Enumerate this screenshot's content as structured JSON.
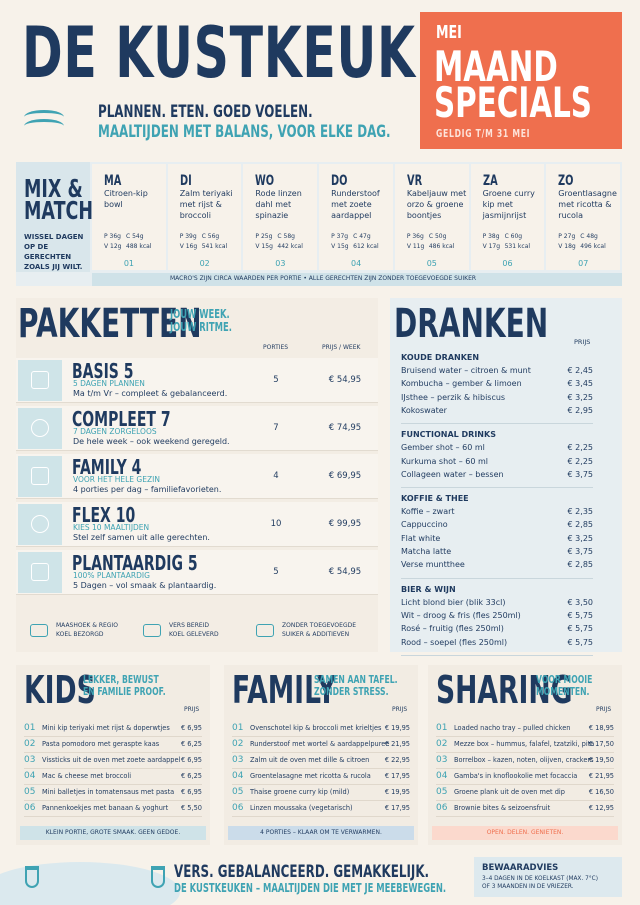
{
  "header": {
    "title": "DE KUSTKEUKEN",
    "tagline": "PLANNEN. ETEN. GOED VOELEN.",
    "subtagline": "MAALTIJDEN MET BALANS, VOOR ELKE DAG."
  },
  "specials": {
    "month": "MEI",
    "title_lines": [
      "MAAND",
      "SPECIALS"
    ],
    "valid": "GELDIG T/M 31 MEI"
  },
  "mix": {
    "title_lines": [
      "MIX &",
      "MATCH"
    ],
    "subtitle": "WISSEL DAGEN OP DE GERECHTEN ZOALS JIJ WILT.",
    "days": [
      {
        "day": "MA",
        "dish": "Citroen-kip bowl",
        "macros": [
          "P 36g",
          "C 54g",
          "V 12g",
          "488 kcal"
        ],
        "number": "01"
      },
      {
        "day": "DI",
        "dish": "Zalm teriyaki met rijst & broccoli",
        "macros": [
          "P 39g",
          "C 56g",
          "V 16g",
          "541 kcal"
        ],
        "number": "02"
      },
      {
        "day": "WO",
        "dish": "Rode linzen dahl met spinazie",
        "macros": [
          "P 25g",
          "C 58g",
          "V 15g",
          "442 kcal"
        ],
        "number": "03"
      },
      {
        "day": "DO",
        "dish": "Runderstoof met zoete aardappel",
        "macros": [
          "P 37g",
          "C 47g",
          "V 15g",
          "612 kcal"
        ],
        "number": "04"
      },
      {
        "day": "VR",
        "dish": "Kabeljauw met orzo & groene boontjes",
        "macros": [
          "P 36g",
          "C 50g",
          "V 11g",
          "486 kcal"
        ],
        "number": "05"
      },
      {
        "day": "ZA",
        "dish": "Groene curry kip met jasmijnrijst",
        "macros": [
          "P 38g",
          "C 60g",
          "V 17g",
          "531 kcal"
        ],
        "number": "06"
      },
      {
        "day": "ZO",
        "dish": "Groentlasagne met ricotta & rucola",
        "macros": [
          "P 27g",
          "C 48g",
          "V 18g",
          "496 kcal"
        ],
        "number": "07"
      }
    ],
    "footnote": "MACRO'S ZIJN CIRCA WAARDEN PER PORTIE  •  ALLE GERECHTEN ZIJN ZONDER TOEGEVOEGDE SUIKER"
  },
  "packages": {
    "title": "PAKKETTEN",
    "subtitle_lines": [
      "JOUW WEEK.",
      "JOUW RITME."
    ],
    "columns": [
      "PORTIES",
      "PRIJS / WEEK"
    ],
    "rows": [
      {
        "name": "BASIS 5",
        "tag": "5 DAGEN PLANNEN",
        "desc": "Ma t/m Vr – compleet & gebalanceerd.",
        "portions": "5",
        "price": "€ 54,95"
      },
      {
        "name": "COMPLEET 7",
        "tag": "7 DAGEN ZORGELOOS",
        "desc": "De hele week – ook weekend geregeld.",
        "portions": "7",
        "price": "€ 74,95"
      },
      {
        "name": "FAMILY 4",
        "tag": "VOOR HET HELE GEZIN",
        "desc": "4 porties per dag – familiefavorieten.",
        "portions": "4",
        "price": "€ 69,95"
      },
      {
        "name": "FLEX 10",
        "tag": "KIES 10 MAALTIJDEN",
        "desc": "Stel zelf samen uit alle gerechten.",
        "portions": "10",
        "price": "€ 99,95"
      },
      {
        "name": "PLANTAARDIG 5",
        "tag": "100% PLANTAARDIG",
        "desc": "5 Dagen – vol smaak & plantaardig.",
        "portions": "5",
        "price": "€ 54,95"
      }
    ],
    "features": [
      [
        "MAASHOEK & REGIO",
        "KOEL BEZORGD"
      ],
      [
        "VERS BEREID",
        "KOEL GELEVERD"
      ],
      [
        "ZONDER TOEGEVOEGDE",
        "SUIKER & ADDITIEVEN"
      ]
    ]
  },
  "drinks": {
    "title": "DRANKEN",
    "price_header": "PRIJS",
    "groups": [
      {
        "name": "KOUDE DRANKEN",
        "items": [
          {
            "name": "Bruisend water – citroen & munt",
            "price": "€ 2,45"
          },
          {
            "name": "Kombucha – gember & limoen",
            "price": "€ 3,45"
          },
          {
            "name": "IJsthee – perzik & hibiscus",
            "price": "€ 3,25"
          },
          {
            "name": "Kokoswater",
            "price": "€ 2,95"
          }
        ]
      },
      {
        "name": "FUNCTIONAL DRINKS",
        "items": [
          {
            "name": "Gember shot – 60 ml",
            "price": "€ 2,25"
          },
          {
            "name": "Kurkuma shot – 60 ml",
            "price": "€ 2,25"
          },
          {
            "name": "Collageen water – bessen",
            "price": "€ 3,75"
          }
        ]
      },
      {
        "name": "KOFFIE & THEE",
        "items": [
          {
            "name": "Koffie – zwart",
            "price": "€ 2,35"
          },
          {
            "name": "Cappuccino",
            "price": "€ 2,85"
          },
          {
            "name": "Flat white",
            "price": "€ 3,25"
          },
          {
            "name": "Matcha latte",
            "price": "€ 3,75"
          },
          {
            "name": "Verse muntthee",
            "price": "€ 2,85"
          }
        ]
      },
      {
        "name": "BIER & WIJN",
        "items": [
          {
            "name": "Licht blond bier (blik 33cl)",
            "price": "€ 3,50"
          },
          {
            "name": "Wit – droog & fris (fles 250ml)",
            "price": "€ 5,75"
          },
          {
            "name": "Rosé – fruitig (fles 250ml)",
            "price": "€ 5,75"
          },
          {
            "name": "Rood – soepel (fles 250ml)",
            "price": "€ 5,75"
          }
        ]
      }
    ]
  },
  "menus": [
    {
      "title": "KIDS",
      "subtitle_lines": [
        "LEKKER, BEWUST",
        "EN FAMILIE PROOF."
      ],
      "price_header": "PRIJS",
      "items": [
        {
          "number": "01",
          "name": "Mini kip teriyaki met rijst & doperwtjes",
          "price": "€ 6,95"
        },
        {
          "number": "02",
          "name": "Pasta pomodoro met geraspte kaas",
          "price": "€ 6,25"
        },
        {
          "number": "03",
          "name": "Vissticks uit de oven met zoete aardappel",
          "price": "€ 6,95"
        },
        {
          "number": "04",
          "name": "Mac & cheese met broccoli",
          "price": "€ 6,25"
        },
        {
          "number": "05",
          "name": "Mini balletjes in tomatensaus met pasta",
          "price": "€ 6,95"
        },
        {
          "number": "06",
          "name": "Pannenkoekjes met banaan & yoghurt",
          "price": "€ 5,50"
        }
      ],
      "footer": "KLEIN PORTIE, GROTE SMAAK. GEEN GEDOE."
    },
    {
      "title": "FAMILY",
      "subtitle_lines": [
        "SAMEN AAN TAFEL.",
        "ZONDER STRESS."
      ],
      "price_header": "PRIJS",
      "items": [
        {
          "number": "01",
          "name": "Ovenschotel kip & broccoli met krieltjes",
          "price": "€ 19,95"
        },
        {
          "number": "02",
          "name": "Runderstoof met wortel & aardappelpuree",
          "price": "€ 21,95"
        },
        {
          "number": "03",
          "name": "Zalm uit de oven met dille & citroen",
          "price": "€ 22,95"
        },
        {
          "number": "04",
          "name": "Groentelasagne met ricotta & rucola",
          "price": "€ 17,95"
        },
        {
          "number": "05",
          "name": "Thaise groene curry kip (mild)",
          "price": "€ 19,95"
        },
        {
          "number": "06",
          "name": "Linzen moussaka (vegetarisch)",
          "price": "€ 17,95"
        }
      ],
      "footer": "4 PORTIES – KLAAR OM TE VERWARMEN."
    },
    {
      "title": "SHARING",
      "subtitle_lines": [
        "VOOR MOOIE",
        "MOMENTEN."
      ],
      "price_header": "PRIJS",
      "items": [
        {
          "number": "01",
          "name": "Loaded nacho tray – pulled chicken",
          "price": "€ 18,95"
        },
        {
          "number": "02",
          "name": "Mezze box – hummus, falafel, tzatziki, pita",
          "price": "€ 17,50"
        },
        {
          "number": "03",
          "name": "Borrelbox – kazen, noten, olijven, crackers",
          "price": "€ 19,50"
        },
        {
          "number": "04",
          "name": "Gamba's in knoflookolie met focaccia",
          "price": "€ 21,95"
        },
        {
          "number": "05",
          "name": "Groene plank uit de oven met dip",
          "price": "€ 16,50"
        },
        {
          "number": "06",
          "name": "Brownie bites & seizoensfruit",
          "price": "€ 12,95"
        }
      ],
      "footer": "OPEN. DELEN. GENIETEN."
    }
  ],
  "footer": {
    "slogan": "VERS. GEBALANCEERD. GEMAKKELIJK.",
    "line": "DE KUSTKEUKEN – MAALTIJDEN DIE MET JE MEEBEWEGEN.",
    "storage_title": "BEWAARADVIES",
    "storage_lines": [
      "3–4 DAGEN IN DE KOELKAST (MAX. 7°C)",
      "OF 3 MAANDEN IN DE VRIEZER."
    ]
  }
}
